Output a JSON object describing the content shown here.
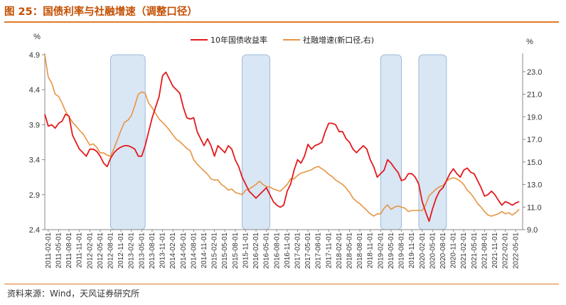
{
  "figure": {
    "title": "图 25：国债利率与社融增速（调整口径）",
    "source": "资料来源：Wind，天风证券研究所"
  },
  "chart_data": {
    "type": "line",
    "left_unit": "%",
    "right_unit": "%",
    "yleft_lim": [
      2.4,
      4.9
    ],
    "yleft_ticks": [
      "2.4",
      "2.9",
      "3.4",
      "3.9",
      "4.4",
      "4.9"
    ],
    "yright_lim": [
      9.0,
      24.5
    ],
    "yright_ticks": [
      "9.0",
      "11.0",
      "13.0",
      "15.0",
      "17.0",
      "19.0",
      "21.0",
      "23.0"
    ],
    "x_ticks": [
      "2011-02-01",
      "2011-05-01",
      "2011-08-01",
      "2011-11-01",
      "2012-02-01",
      "2012-05-01",
      "2012-08-01",
      "2012-11-01",
      "2013-02-01",
      "2013-05-01",
      "2013-08-01",
      "2013-11-01",
      "2014-02-01",
      "2014-05-01",
      "2014-08-01",
      "2014-11-01",
      "2015-02-01",
      "2015-05-01",
      "2015-08-01",
      "2015-11-01",
      "2016-02-01",
      "2016-05-01",
      "2016-08-01",
      "2016-11-01",
      "2017-02-01",
      "2017-05-01",
      "2017-08-01",
      "2017-11-01",
      "2018-02-01",
      "2018-05-01",
      "2018-08-01",
      "2018-11-01",
      "2019-02-01",
      "2019-05-01",
      "2019-08-01",
      "2019-11-01",
      "2020-02-01",
      "2020-05-01",
      "2020-08-01",
      "2020-11-01",
      "2021-02-01",
      "2021-05-01",
      "2021-08-01",
      "2021-11-01",
      "2022-02-01",
      "2022-05-01"
    ],
    "shaded_periods": [
      [
        "2012-08",
        "2013-06"
      ],
      [
        "2015-10",
        "2016-06"
      ],
      [
        "2019-02",
        "2019-08"
      ],
      [
        "2020-01",
        "2020-09"
      ]
    ],
    "legend_position": "top-center",
    "series": [
      {
        "name": "10年国债收益率",
        "axis": "left",
        "color": "#e31a1c",
        "x": [
          "2011-01",
          "2011-02",
          "2011-03",
          "2011-04",
          "2011-05",
          "2011-06",
          "2011-07",
          "2011-08",
          "2011-09",
          "2011-10",
          "2011-11",
          "2011-12",
          "2012-01",
          "2012-02",
          "2012-03",
          "2012-04",
          "2012-05",
          "2012-06",
          "2012-07",
          "2012-08",
          "2012-09",
          "2012-10",
          "2012-11",
          "2012-12",
          "2013-01",
          "2013-02",
          "2013-03",
          "2013-04",
          "2013-05",
          "2013-06",
          "2013-07",
          "2013-08",
          "2013-09",
          "2013-10",
          "2013-11",
          "2013-12",
          "2014-01",
          "2014-02",
          "2014-03",
          "2014-04",
          "2014-05",
          "2014-06",
          "2014-07",
          "2014-08",
          "2014-09",
          "2014-10",
          "2014-11",
          "2014-12",
          "2015-01",
          "2015-02",
          "2015-03",
          "2015-04",
          "2015-05",
          "2015-06",
          "2015-07",
          "2015-08",
          "2015-09",
          "2015-10",
          "2015-11",
          "2015-12",
          "2016-01",
          "2016-02",
          "2016-03",
          "2016-04",
          "2016-05",
          "2016-06",
          "2016-07",
          "2016-08",
          "2016-09",
          "2016-10",
          "2016-11",
          "2016-12",
          "2017-01",
          "2017-02",
          "2017-03",
          "2017-04",
          "2017-05",
          "2017-06",
          "2017-07",
          "2017-08",
          "2017-09",
          "2017-10",
          "2017-11",
          "2017-12",
          "2018-01",
          "2018-02",
          "2018-03",
          "2018-04",
          "2018-05",
          "2018-06",
          "2018-07",
          "2018-08",
          "2018-09",
          "2018-10",
          "2018-11",
          "2018-12",
          "2019-01",
          "2019-02",
          "2019-03",
          "2019-04",
          "2019-05",
          "2019-06",
          "2019-07",
          "2019-08",
          "2019-09",
          "2019-10",
          "2019-11",
          "2019-12",
          "2020-01",
          "2020-02",
          "2020-03",
          "2020-04",
          "2020-05",
          "2020-06",
          "2020-07",
          "2020-08",
          "2020-09",
          "2020-10",
          "2020-11",
          "2020-12",
          "2021-01",
          "2021-02",
          "2021-03",
          "2021-04",
          "2021-05",
          "2021-06",
          "2021-07",
          "2021-08",
          "2021-09",
          "2021-10",
          "2021-11",
          "2021-12",
          "2022-01",
          "2022-02",
          "2022-03",
          "2022-04",
          "2022-05",
          "2022-06"
        ],
        "values": [
          4.05,
          3.88,
          3.9,
          3.85,
          3.92,
          3.95,
          4.05,
          4.02,
          3.75,
          3.65,
          3.55,
          3.5,
          3.45,
          3.55,
          3.55,
          3.52,
          3.45,
          3.35,
          3.3,
          3.42,
          3.5,
          3.55,
          3.58,
          3.6,
          3.6,
          3.58,
          3.55,
          3.45,
          3.45,
          3.6,
          3.8,
          4.0,
          4.15,
          4.3,
          4.6,
          4.65,
          4.55,
          4.45,
          4.4,
          4.35,
          4.15,
          4.0,
          3.98,
          4.0,
          3.8,
          3.7,
          3.6,
          3.7,
          3.6,
          3.45,
          3.6,
          3.55,
          3.5,
          3.6,
          3.55,
          3.4,
          3.3,
          3.15,
          3.05,
          2.95,
          2.9,
          2.85,
          2.9,
          2.95,
          3.0,
          2.9,
          2.8,
          2.75,
          2.72,
          2.75,
          2.95,
          3.05,
          3.25,
          3.4,
          3.35,
          3.45,
          3.62,
          3.55,
          3.6,
          3.62,
          3.65,
          3.8,
          3.92,
          3.92,
          3.9,
          3.8,
          3.8,
          3.7,
          3.65,
          3.55,
          3.5,
          3.55,
          3.6,
          3.55,
          3.4,
          3.3,
          3.15,
          3.2,
          3.25,
          3.4,
          3.35,
          3.28,
          3.22,
          3.1,
          3.12,
          3.2,
          3.2,
          3.15,
          3.05,
          2.8,
          2.65,
          2.52,
          2.7,
          2.85,
          2.95,
          3.0,
          3.1,
          3.2,
          3.27,
          3.2,
          3.15,
          3.25,
          3.28,
          3.22,
          3.2,
          3.1,
          3.0,
          2.88,
          2.9,
          2.95,
          2.9,
          2.82,
          2.75,
          2.8,
          2.78,
          2.75,
          2.78,
          2.8
        ]
      },
      {
        "name": "社融增速(新口径,右)",
        "axis": "right",
        "color": "#e69542",
        "x": [
          "2011-01",
          "2011-02",
          "2011-03",
          "2011-04",
          "2011-05",
          "2011-06",
          "2011-07",
          "2011-08",
          "2011-09",
          "2011-10",
          "2011-11",
          "2011-12",
          "2012-01",
          "2012-02",
          "2012-03",
          "2012-04",
          "2012-05",
          "2012-06",
          "2012-07",
          "2012-08",
          "2012-09",
          "2012-10",
          "2012-11",
          "2012-12",
          "2013-01",
          "2013-02",
          "2013-03",
          "2013-04",
          "2013-05",
          "2013-06",
          "2013-07",
          "2013-08",
          "2013-09",
          "2013-10",
          "2013-11",
          "2013-12",
          "2014-01",
          "2014-02",
          "2014-03",
          "2014-04",
          "2014-05",
          "2014-06",
          "2014-07",
          "2014-08",
          "2014-09",
          "2014-10",
          "2014-11",
          "2014-12",
          "2015-01",
          "2015-02",
          "2015-03",
          "2015-04",
          "2015-05",
          "2015-06",
          "2015-07",
          "2015-08",
          "2015-09",
          "2015-10",
          "2015-11",
          "2015-12",
          "2016-01",
          "2016-02",
          "2016-03",
          "2016-04",
          "2016-05",
          "2016-06",
          "2016-07",
          "2016-08",
          "2016-09",
          "2016-10",
          "2016-11",
          "2016-12",
          "2017-01",
          "2017-02",
          "2017-03",
          "2017-04",
          "2017-05",
          "2017-06",
          "2017-07",
          "2017-08",
          "2017-09",
          "2017-10",
          "2017-11",
          "2017-12",
          "2018-01",
          "2018-02",
          "2018-03",
          "2018-04",
          "2018-05",
          "2018-06",
          "2018-07",
          "2018-08",
          "2018-09",
          "2018-10",
          "2018-11",
          "2018-12",
          "2019-01",
          "2019-02",
          "2019-03",
          "2019-04",
          "2019-05",
          "2019-06",
          "2019-07",
          "2019-08",
          "2019-09",
          "2019-10",
          "2019-11",
          "2019-12",
          "2020-01",
          "2020-02",
          "2020-03",
          "2020-04",
          "2020-05",
          "2020-06",
          "2020-07",
          "2020-08",
          "2020-09",
          "2020-10",
          "2020-11",
          "2020-12",
          "2021-01",
          "2021-02",
          "2021-03",
          "2021-04",
          "2021-05",
          "2021-06",
          "2021-07",
          "2021-08",
          "2021-09",
          "2021-10",
          "2021-11",
          "2021-12",
          "2022-01",
          "2022-02",
          "2022-03",
          "2022-04",
          "2022-05",
          "2022-06"
        ],
        "values": [
          24.5,
          22.5,
          22.0,
          21.0,
          20.8,
          20.2,
          19.5,
          19.0,
          18.5,
          18.2,
          17.8,
          17.5,
          17.0,
          16.5,
          16.6,
          16.3,
          15.8,
          15.8,
          15.6,
          15.5,
          16.2,
          17.0,
          17.8,
          18.5,
          18.7,
          19.1,
          20.0,
          21.0,
          21.2,
          21.1,
          20.2,
          19.8,
          19.3,
          18.8,
          18.5,
          18.2,
          17.8,
          17.4,
          17.0,
          16.8,
          16.5,
          16.2,
          16.0,
          15.2,
          14.8,
          14.5,
          14.2,
          13.9,
          13.5,
          13.4,
          13.4,
          13.0,
          12.8,
          12.5,
          12.6,
          12.3,
          12.2,
          12.1,
          12.5,
          12.6,
          12.8,
          13.0,
          13.3,
          13.0,
          12.8,
          12.8,
          12.6,
          12.5,
          12.4,
          12.7,
          13.0,
          13.5,
          13.5,
          13.8,
          14.0,
          14.1,
          14.2,
          14.3,
          14.5,
          14.6,
          14.4,
          14.2,
          13.9,
          13.7,
          13.4,
          13.2,
          13.0,
          12.7,
          12.3,
          11.8,
          11.5,
          11.3,
          11.0,
          10.7,
          10.4,
          10.2,
          10.4,
          10.4,
          10.9,
          11.2,
          10.8,
          11.0,
          11.1,
          11.0,
          10.9,
          10.6,
          10.7,
          10.7,
          10.7,
          10.7,
          11.2,
          12.0,
          12.3,
          12.6,
          12.8,
          12.9,
          13.3,
          13.5,
          13.6,
          13.5,
          13.3,
          13.0,
          12.5,
          12.2,
          11.8,
          11.3,
          11.0,
          10.6,
          10.3,
          10.2,
          10.3,
          10.4,
          10.6,
          10.4,
          10.5,
          10.3,
          10.5,
          10.8
        ]
      }
    ]
  }
}
